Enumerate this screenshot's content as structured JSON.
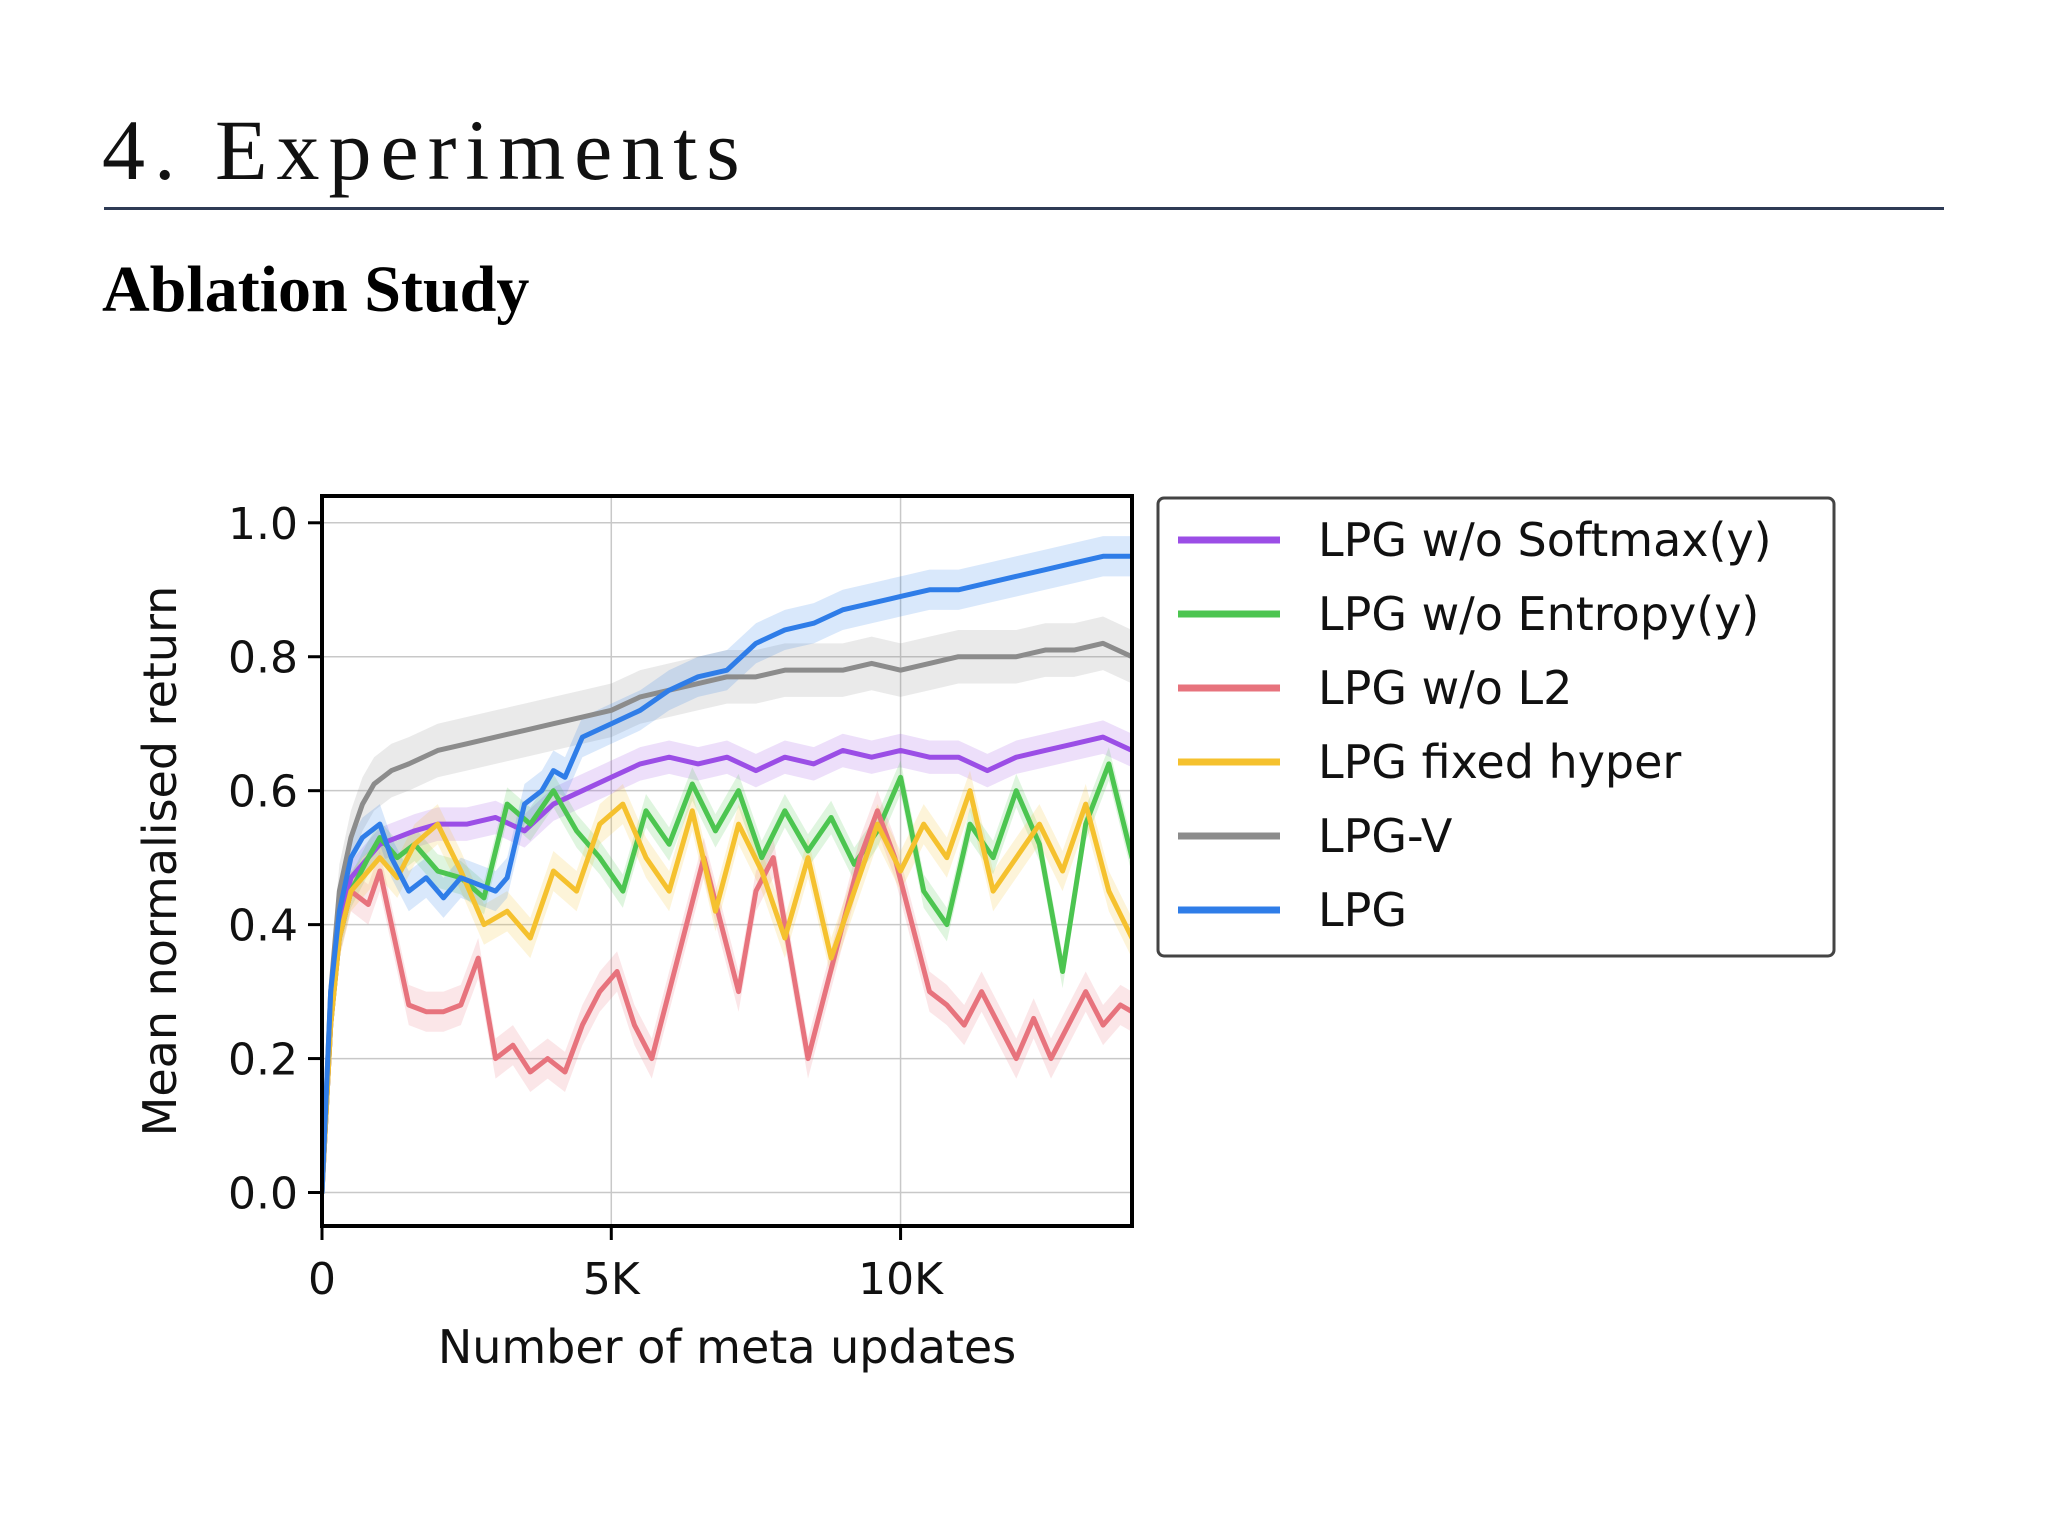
{
  "slide": {
    "title": "4. Experiments",
    "subtitle": "Ablation Study"
  },
  "chart_data": {
    "type": "line",
    "title": "",
    "xlabel": "Number of meta updates",
    "ylabel": "Mean normalised return",
    "xlim": [
      0,
      14000
    ],
    "ylim": [
      -0.05,
      1.04
    ],
    "xticks": [
      0,
      5000,
      10000
    ],
    "xtick_labels": [
      "0",
      "5K",
      "10K"
    ],
    "yticks": [
      0.0,
      0.2,
      0.4,
      0.6,
      0.8,
      1.0
    ],
    "ytick_labels": [
      "0.0",
      "0.2",
      "0.4",
      "0.6",
      "0.8",
      "1.0"
    ],
    "grid": true,
    "legend_position": "outside-right-top",
    "series": [
      {
        "name": "LPG w/o Softmax(y)",
        "color": "#9b4ee6",
        "x": [
          0,
          150,
          300,
          500,
          800,
          1000,
          1300,
          1600,
          2000,
          2500,
          3000,
          3500,
          4000,
          4500,
          5000,
          5500,
          6000,
          6500,
          7000,
          7500,
          8000,
          8500,
          9000,
          9500,
          10000,
          10500,
          11000,
          11500,
          12000,
          12500,
          13000,
          13500,
          14000
        ],
        "y": [
          0.0,
          0.25,
          0.4,
          0.47,
          0.5,
          0.52,
          0.53,
          0.54,
          0.55,
          0.55,
          0.56,
          0.54,
          0.58,
          0.6,
          0.62,
          0.64,
          0.65,
          0.64,
          0.65,
          0.63,
          0.65,
          0.64,
          0.66,
          0.65,
          0.66,
          0.65,
          0.65,
          0.63,
          0.65,
          0.66,
          0.67,
          0.68,
          0.66
        ]
      },
      {
        "name": "LPG w/o Entropy(y)",
        "color": "#4cc550",
        "x": [
          0,
          150,
          300,
          500,
          800,
          1000,
          1300,
          1600,
          2000,
          2400,
          2800,
          3200,
          3600,
          4000,
          4400,
          4800,
          5200,
          5600,
          6000,
          6400,
          6800,
          7200,
          7600,
          8000,
          8400,
          8800,
          9200,
          9600,
          10000,
          10400,
          10800,
          11200,
          11600,
          12000,
          12400,
          12800,
          13200,
          13600,
          14000
        ],
        "y": [
          0.0,
          0.25,
          0.38,
          0.45,
          0.5,
          0.53,
          0.5,
          0.52,
          0.48,
          0.47,
          0.44,
          0.58,
          0.55,
          0.6,
          0.54,
          0.5,
          0.45,
          0.57,
          0.52,
          0.61,
          0.54,
          0.6,
          0.5,
          0.57,
          0.51,
          0.56,
          0.49,
          0.54,
          0.62,
          0.45,
          0.4,
          0.55,
          0.5,
          0.6,
          0.52,
          0.33,
          0.55,
          0.64,
          0.5
        ]
      },
      {
        "name": "LPG w/o L2",
        "color": "#e7737d",
        "x": [
          0,
          150,
          300,
          500,
          800,
          1000,
          1200,
          1500,
          1800,
          2100,
          2400,
          2700,
          3000,
          3300,
          3600,
          3900,
          4200,
          4500,
          4800,
          5100,
          5400,
          5700,
          6000,
          6300,
          6600,
          6900,
          7200,
          7500,
          7800,
          8100,
          8400,
          8700,
          9000,
          9300,
          9600,
          9900,
          10200,
          10500,
          10800,
          11100,
          11400,
          11700,
          12000,
          12300,
          12600,
          12900,
          13200,
          13500,
          13800,
          14000
        ],
        "y": [
          0.0,
          0.25,
          0.38,
          0.45,
          0.43,
          0.48,
          0.4,
          0.28,
          0.27,
          0.27,
          0.28,
          0.35,
          0.2,
          0.22,
          0.18,
          0.2,
          0.18,
          0.25,
          0.3,
          0.33,
          0.25,
          0.2,
          0.3,
          0.4,
          0.5,
          0.4,
          0.3,
          0.45,
          0.5,
          0.35,
          0.2,
          0.3,
          0.4,
          0.5,
          0.57,
          0.5,
          0.4,
          0.3,
          0.28,
          0.25,
          0.3,
          0.25,
          0.2,
          0.26,
          0.2,
          0.25,
          0.3,
          0.25,
          0.28,
          0.27
        ]
      },
      {
        "name": "LPG fixed hyper",
        "color": "#f5c12e",
        "x": [
          0,
          150,
          300,
          500,
          800,
          1000,
          1300,
          1600,
          2000,
          2400,
          2800,
          3200,
          3600,
          4000,
          4400,
          4800,
          5200,
          5600,
          6000,
          6400,
          6800,
          7200,
          7600,
          8000,
          8400,
          8800,
          9200,
          9600,
          10000,
          10400,
          10800,
          11200,
          11600,
          12000,
          12400,
          12800,
          13200,
          13600,
          14000
        ],
        "y": [
          0.0,
          0.25,
          0.38,
          0.45,
          0.48,
          0.5,
          0.47,
          0.52,
          0.55,
          0.48,
          0.4,
          0.42,
          0.38,
          0.48,
          0.45,
          0.55,
          0.58,
          0.5,
          0.45,
          0.57,
          0.42,
          0.55,
          0.48,
          0.38,
          0.5,
          0.35,
          0.45,
          0.55,
          0.48,
          0.55,
          0.5,
          0.6,
          0.45,
          0.5,
          0.55,
          0.48,
          0.58,
          0.45,
          0.38
        ]
      },
      {
        "name": "LPG-V",
        "color": "#8c8c8c",
        "x": [
          0,
          150,
          300,
          500,
          700,
          900,
          1200,
          1500,
          2000,
          2500,
          3000,
          3500,
          4000,
          4500,
          5000,
          5500,
          6000,
          6500,
          7000,
          7500,
          8000,
          8500,
          9000,
          9500,
          10000,
          10500,
          11000,
          11500,
          12000,
          12500,
          13000,
          13500,
          14000
        ],
        "y": [
          0.0,
          0.3,
          0.45,
          0.53,
          0.58,
          0.61,
          0.63,
          0.64,
          0.66,
          0.67,
          0.68,
          0.69,
          0.7,
          0.71,
          0.72,
          0.74,
          0.75,
          0.76,
          0.77,
          0.77,
          0.78,
          0.78,
          0.78,
          0.79,
          0.78,
          0.79,
          0.8,
          0.8,
          0.8,
          0.81,
          0.81,
          0.82,
          0.8
        ]
      },
      {
        "name": "LPG",
        "color": "#2f7de8",
        "x": [
          0,
          150,
          300,
          500,
          700,
          1000,
          1200,
          1500,
          1800,
          2100,
          2400,
          2700,
          3000,
          3200,
          3500,
          3800,
          4000,
          4200,
          4500,
          5000,
          5500,
          6000,
          6500,
          7000,
          7500,
          8000,
          8500,
          9000,
          9500,
          10000,
          10500,
          11000,
          11500,
          12000,
          12500,
          13000,
          13500,
          14000
        ],
        "y": [
          0.0,
          0.3,
          0.42,
          0.5,
          0.53,
          0.55,
          0.5,
          0.45,
          0.47,
          0.44,
          0.47,
          0.46,
          0.45,
          0.47,
          0.58,
          0.6,
          0.63,
          0.62,
          0.68,
          0.7,
          0.72,
          0.75,
          0.77,
          0.78,
          0.82,
          0.84,
          0.85,
          0.87,
          0.88,
          0.89,
          0.9,
          0.9,
          0.91,
          0.92,
          0.93,
          0.94,
          0.95,
          0.95
        ]
      }
    ]
  }
}
